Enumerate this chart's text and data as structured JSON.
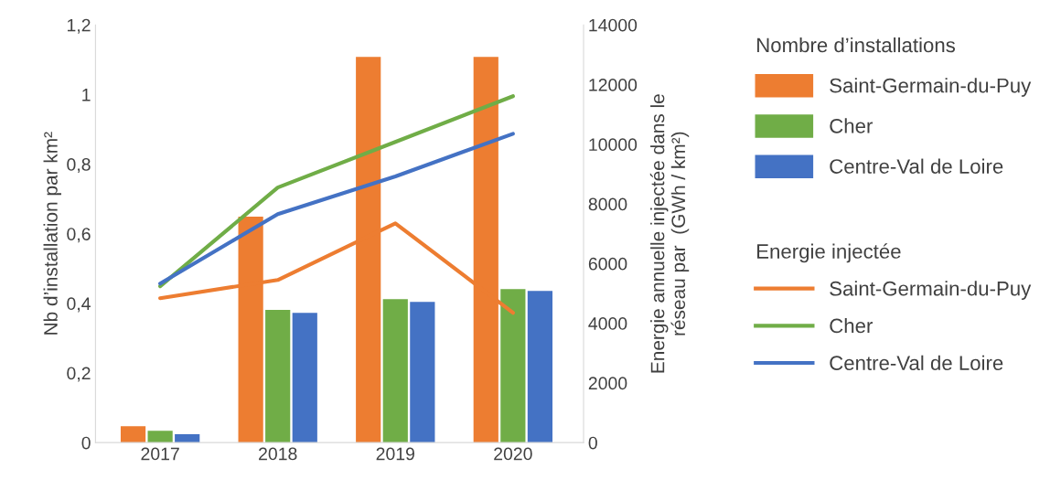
{
  "chart_data": {
    "type": "bar",
    "categories": [
      "2017",
      "2018",
      "2019",
      "2020"
    ],
    "ylabel": "Nb d’installation par km²",
    "y2label": "Energie annuelle injectée dans le\nréseau par  (GWh / km²)",
    "legend_title": [
      "Nombre d’installations",
      "Energie injectée"
    ],
    "ylim": [
      0,
      1.2
    ],
    "yticks": [
      0,
      {
        "value": 0.2,
        "label": "0,2"
      },
      {
        "value": 0.4,
        "label": "0,4"
      },
      {
        "value": 0.6,
        "label": "0,6"
      },
      {
        "value": 0.8,
        "label": "0,8"
      },
      1,
      {
        "value": 1.2,
        "label": "1,2"
      }
    ],
    "y2lim": [
      0,
      14000
    ],
    "y2ticks": [
      0,
      2000,
      4000,
      6000,
      8000,
      10000,
      12000,
      14000
    ],
    "grid": false,
    "legend": "right",
    "series": [
      {
        "name": "Saint-Germain-du-Puy",
        "color": "#ed7d31",
        "values": [
          0.047,
          0.649,
          1.108,
          1.108
        ]
      },
      {
        "name": "Cher",
        "color": "#70ad47",
        "values": [
          0.034,
          0.381,
          0.412,
          0.441
        ]
      },
      {
        "name": "Centre-Val de Loire",
        "color": "#4472c4",
        "values": [
          0.024,
          0.373,
          0.404,
          0.436
        ]
      },
      {
        "name": "Saint-Germain-du-Puy",
        "type": "line",
        "axis": "y2",
        "color": "#ed7d31",
        "values": [
          4840,
          5450,
          7350,
          4350
        ]
      },
      {
        "name": "Cher",
        "type": "line",
        "axis": "y2",
        "color": "#70ad47",
        "values": [
          5240,
          8550,
          10080,
          11610
        ]
      },
      {
        "name": "Centre-Val de Loire",
        "type": "line",
        "axis": "y2",
        "color": "#4472c4",
        "values": [
          5330,
          7660,
          8920,
          10350
        ]
      }
    ]
  }
}
